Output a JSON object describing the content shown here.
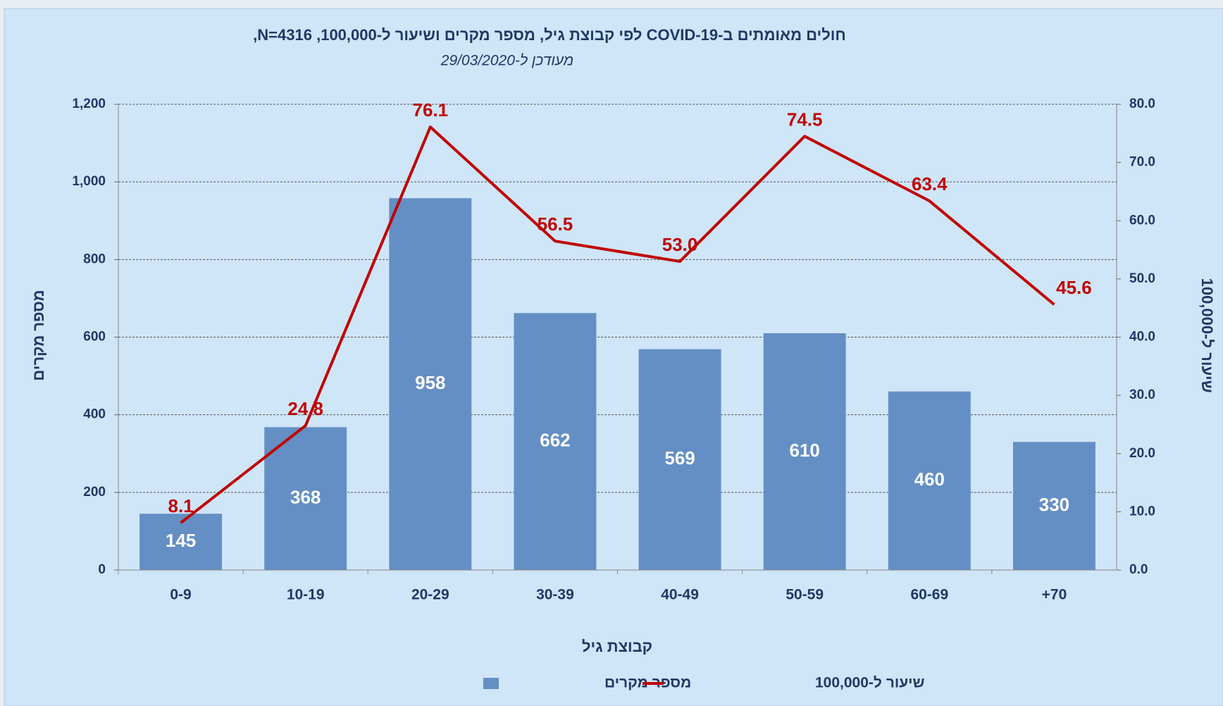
{
  "chart_data": {
    "type": "bar",
    "title": "חולים מאומתים ב-COVID-19 לפי קבוצת גיל, מספר מקרים ושיעור ל-100,000, N=4316,",
    "subtitle": "מעודכן ל-29/03/2020",
    "x_label": "קבוצת גיל",
    "y_label": "מספר מקרים",
    "y2_label": "שיעור ל-100,000",
    "categories": [
      "0-9",
      "10-19",
      "20-29",
      "30-39",
      "40-49",
      "50-59",
      "60-69",
      "+70"
    ],
    "series": [
      {
        "name": "מספר מקרים",
        "type": "bar",
        "color": "#648fc4",
        "values": [
          145,
          368,
          958,
          662,
          569,
          610,
          460,
          330
        ]
      },
      {
        "name": "שיעור ל-100,000",
        "type": "line",
        "axis": "y2",
        "color": "#c00000",
        "values": [
          8.1,
          24.8,
          76.1,
          56.5,
          53.0,
          74.5,
          63.4,
          45.6
        ],
        "value_labels": [
          "8.1",
          "24.8",
          "76.1",
          "56.5",
          "53.0",
          "74.5",
          "63.4",
          "45.6"
        ]
      }
    ],
    "ylim": [
      0,
      1200
    ],
    "yticks": [
      0,
      200,
      400,
      600,
      800,
      {
        "value": 1000,
        "label": "1,000"
      },
      {
        "value": 1200,
        "label": "1,200"
      }
    ],
    "y2lim": [
      0,
      80
    ],
    "y2ticks": [
      {
        "value": 0,
        "label": "0.0"
      },
      {
        "value": 10,
        "label": "10.0"
      },
      {
        "value": 20,
        "label": "20.0"
      },
      {
        "value": 30,
        "label": "30.0"
      },
      {
        "value": 40,
        "label": "40.0"
      },
      {
        "value": 50,
        "label": "50.0"
      },
      {
        "value": 60,
        "label": "60.0"
      },
      {
        "value": 70,
        "label": "70.0"
      },
      {
        "value": 80,
        "label": "80.0"
      }
    ],
    "grid": true,
    "legend": "bottom"
  }
}
